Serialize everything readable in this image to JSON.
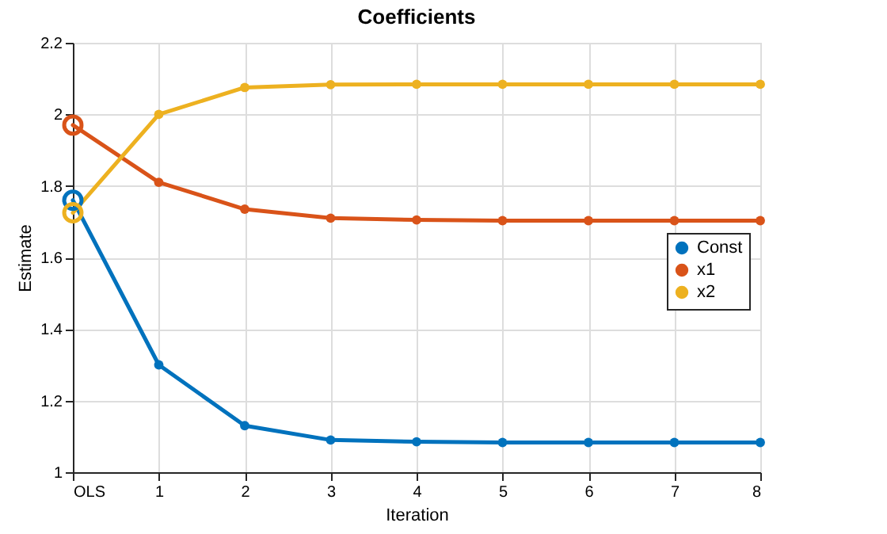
{
  "chart_data": {
    "type": "line",
    "title": "Coefficients",
    "xlabel": "Iteration",
    "ylabel": "Estimate",
    "x": [
      0,
      1,
      2,
      3,
      4,
      5,
      6,
      7,
      8
    ],
    "xlim": [
      0,
      8
    ],
    "xticks": [
      {
        "value": 0,
        "label": "OLS"
      },
      1,
      2,
      3,
      4,
      5,
      6,
      7,
      8
    ],
    "ylim": [
      1,
      2.2
    ],
    "yticks": [
      1,
      1.2,
      1.4,
      1.6,
      1.8,
      2,
      2.2
    ],
    "grid": true,
    "legend": "right",
    "marker": "circle",
    "line_style": "solid",
    "series": [
      {
        "name": "Const",
        "color": "#0072bd",
        "values": [
          1.76,
          1.3,
          1.13,
          1.09,
          1.085,
          1.083,
          1.083,
          1.083,
          1.083
        ]
      },
      {
        "name": "x1",
        "color": "#d95319",
        "values": [
          1.97,
          1.81,
          1.735,
          1.71,
          1.705,
          1.703,
          1.703,
          1.703,
          1.703
        ]
      },
      {
        "name": "x2",
        "color": "#edb120",
        "values": [
          1.725,
          2.0,
          2.075,
          2.083,
          2.084,
          2.084,
          2.084,
          2.084,
          2.084
        ]
      }
    ]
  }
}
